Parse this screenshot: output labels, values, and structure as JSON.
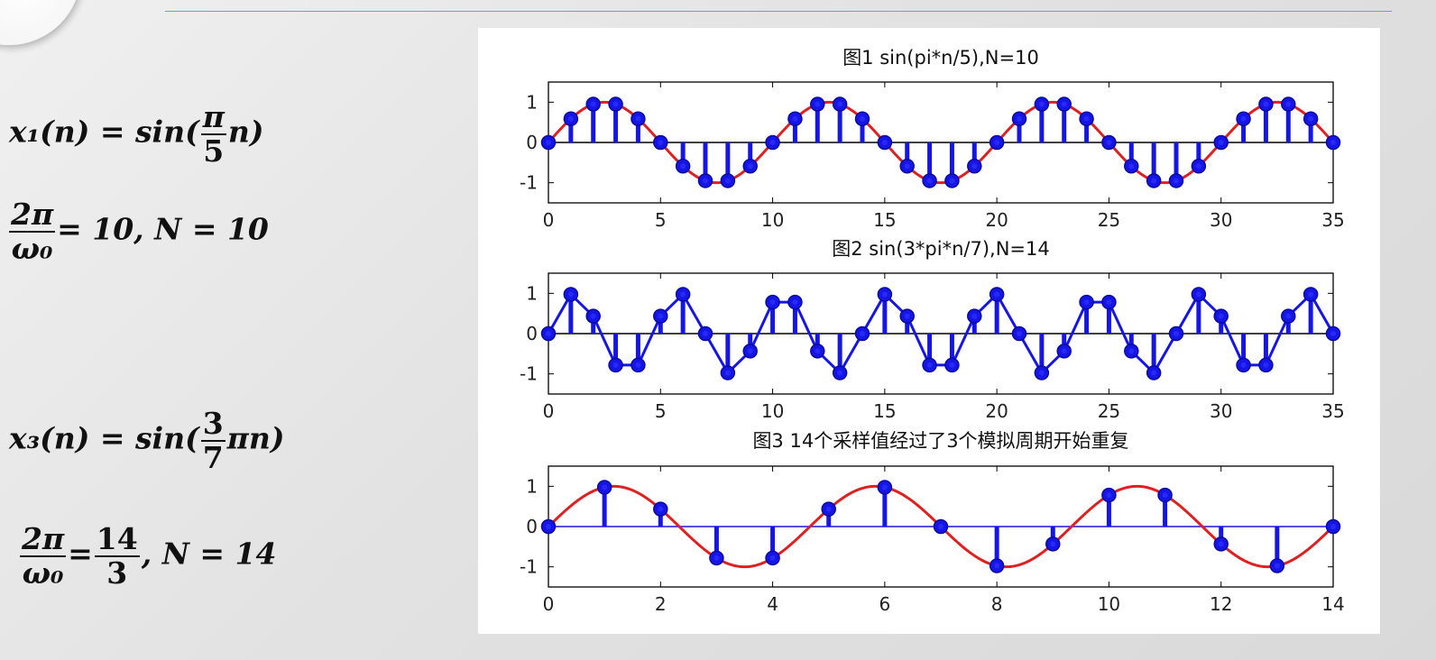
{
  "equations": {
    "x1_lhs": "x₁(n) = sin(",
    "x1_frac_num": "π",
    "x1_frac_den": "5",
    "x1_tail": "n)",
    "p1_frac_num": "2π",
    "p1_frac_den": "ω₀",
    "p1_tail": "= 10, N = 10",
    "x3_lhs": "x₃(n) = sin(",
    "x3_frac_num": "3",
    "x3_frac_den": "7",
    "x3_tail": "πn)",
    "p3_frac_num": "2π",
    "p3_frac_den": "ω₀",
    "p3_eq": "=",
    "p3_frac2_num": "14",
    "p3_frac2_den": "3",
    "p3_tail": ", N = 14"
  },
  "colors": {
    "stem": "#1515e6",
    "analog": "#e02020",
    "axis": "#000000"
  },
  "chart_data": [
    {
      "type": "stem",
      "title": "图1 sin(pi*n/5),N=10",
      "xlim": [
        0,
        35
      ],
      "ylim": [
        -1.5,
        1.5
      ],
      "xticks": [
        0,
        5,
        10,
        15,
        20,
        25,
        30,
        35
      ],
      "yticks": [
        1,
        0,
        -1
      ],
      "x": [
        0,
        1,
        2,
        3,
        4,
        5,
        6,
        7,
        8,
        9,
        10,
        11,
        12,
        13,
        14,
        15,
        16,
        17,
        18,
        19,
        20,
        21,
        22,
        23,
        24,
        25,
        26,
        27,
        28,
        29,
        30,
        31,
        32,
        33,
        34,
        35
      ],
      "y": [
        0,
        0.588,
        0.951,
        0.951,
        0.588,
        0,
        -0.588,
        -0.951,
        -0.951,
        -0.588,
        0,
        0.588,
        0.951,
        0.951,
        0.588,
        0,
        -0.588,
        -0.951,
        -0.951,
        -0.588,
        0,
        0.588,
        0.951,
        0.951,
        0.588,
        0,
        -0.588,
        -0.951,
        -0.951,
        -0.588,
        0,
        0.588,
        0.951,
        0.951,
        0.588,
        0
      ],
      "envelope": "analog-sine",
      "envelope_cycles": 3.5
    },
    {
      "type": "stem",
      "title": "图2 sin(3*pi*n/7),N=14",
      "xlim": [
        0,
        35
      ],
      "ylim": [
        -1.5,
        1.5
      ],
      "xticks": [
        0,
        5,
        10,
        15,
        20,
        25,
        30,
        35
      ],
      "yticks": [
        1,
        0,
        -1
      ],
      "x": [
        0,
        1,
        2,
        3,
        4,
        5,
        6,
        7,
        8,
        9,
        10,
        11,
        12,
        13,
        14,
        15,
        16,
        17,
        18,
        19,
        20,
        21,
        22,
        23,
        24,
        25,
        26,
        27,
        28,
        29,
        30,
        31,
        32,
        33,
        34,
        35
      ],
      "y": [
        0,
        0.975,
        0.434,
        -0.782,
        -0.782,
        0.434,
        0.975,
        0,
        -0.975,
        -0.434,
        0.782,
        0.782,
        -0.434,
        -0.975,
        0,
        0.975,
        0.434,
        -0.782,
        -0.782,
        0.434,
        0.975,
        0,
        -0.975,
        -0.434,
        0.782,
        0.782,
        -0.434,
        -0.975,
        0,
        0.975,
        0.434,
        -0.782,
        -0.782,
        0.434,
        0.975,
        0
      ],
      "envelope": "connected-samples"
    },
    {
      "type": "stem",
      "title": "图3 14个采样值经过了3个模拟周期开始重复",
      "xlim": [
        0,
        14
      ],
      "ylim": [
        -1.5,
        1.5
      ],
      "xticks": [
        0,
        2,
        4,
        6,
        8,
        10,
        12,
        14
      ],
      "yticks": [
        1,
        0,
        -1
      ],
      "x": [
        0,
        1,
        2,
        3,
        4,
        5,
        6,
        7,
        8,
        9,
        10,
        11,
        12,
        13,
        14
      ],
      "y": [
        0,
        0.975,
        0.434,
        -0.782,
        -0.782,
        0.434,
        0.975,
        0,
        -0.975,
        -0.434,
        0.782,
        0.782,
        -0.434,
        -0.975,
        0
      ],
      "envelope": "analog-sine",
      "envelope_cycles": 3
    }
  ]
}
